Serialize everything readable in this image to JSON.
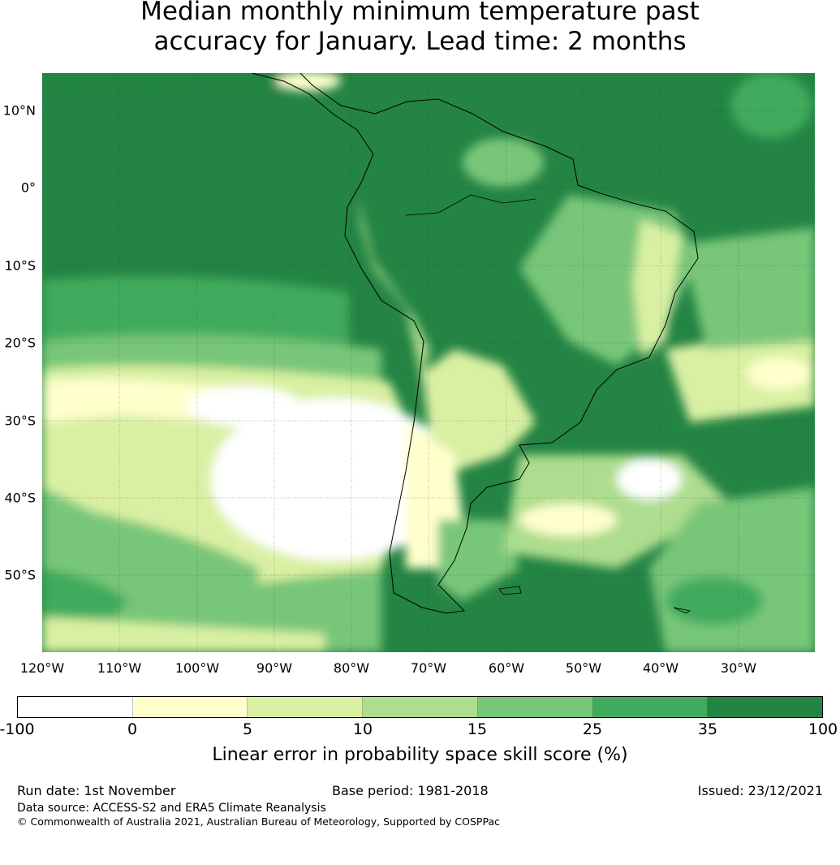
{
  "title_line1": "Median monthly minimum temperature past",
  "title_line2": "accuracy for January. Lead time: 2 months",
  "map": {
    "region": "South America",
    "lon_ticks": [
      "120°W",
      "110°W",
      "100°W",
      "90°W",
      "80°W",
      "70°W",
      "60°W",
      "50°W",
      "40°W",
      "30°W"
    ],
    "lat_ticks": [
      "10°N",
      "0°",
      "10°S",
      "20°S",
      "30°S",
      "40°S",
      "50°S"
    ]
  },
  "colorbar": {
    "labels": [
      "-100",
      "0",
      "5",
      "10",
      "15",
      "25",
      "35",
      "100"
    ],
    "colors": [
      "#ffffff",
      "#ffffcc",
      "#d9f0a3",
      "#addd8e",
      "#78c679",
      "#41ab5d",
      "#238443"
    ],
    "title": "Linear error in probability space skill score (%)"
  },
  "footer": {
    "run_date": "Run date: 1st November",
    "base_period": "Base period: 1981-2018",
    "issued": "Issued: 23/12/2021",
    "data_source": "Data source: ACCESS-S2 and ERA5 Climate Reanalysis",
    "copyright": "© Commonwealth of Australia 2021, Australian Bureau of Meteorology, Supported by COSPPac"
  }
}
